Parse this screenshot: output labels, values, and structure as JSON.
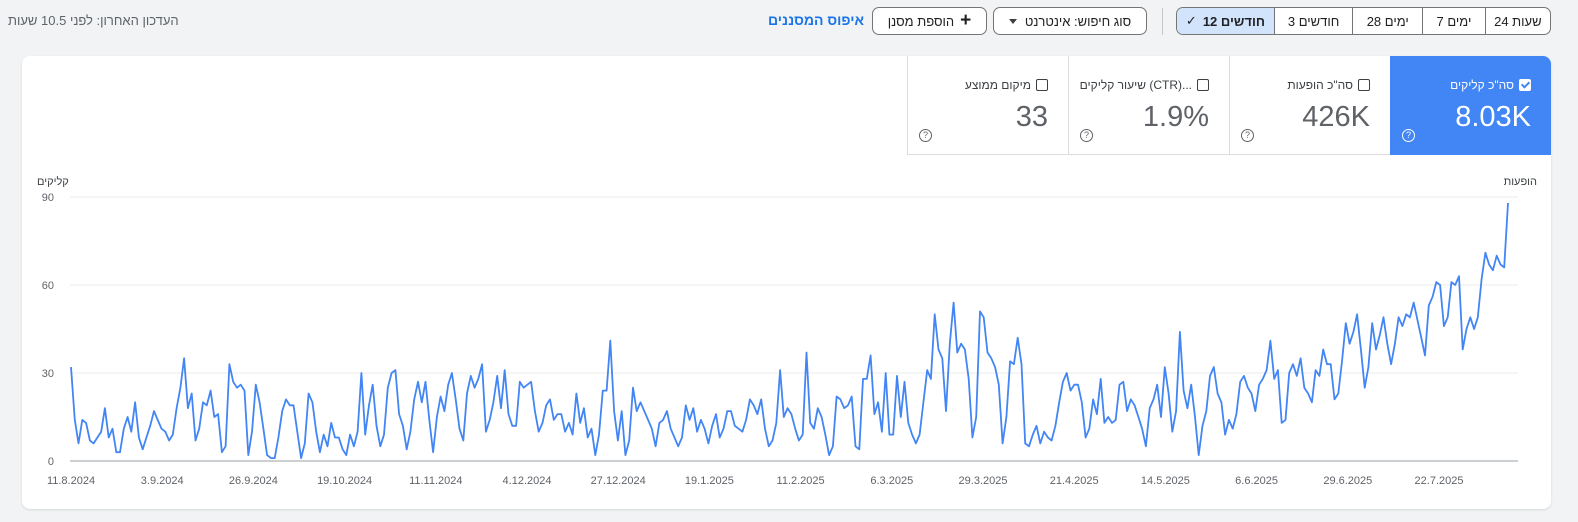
{
  "topbar": {
    "last_updated": "העדכון האחרון: לפני 10.5 שעות",
    "reset_filters": "איפוס המסננים",
    "add_filter": "הוספת מסנן",
    "search_type": "סוג חיפוש: אינטרנט",
    "ranges": [
      {
        "label": "24 שעות",
        "active": false
      },
      {
        "label": "7 ימים",
        "active": false
      },
      {
        "label": "28 ימים",
        "active": false
      },
      {
        "label": "3 חודשים",
        "active": false
      },
      {
        "label": "12 חודשים",
        "active": true
      }
    ]
  },
  "metrics": [
    {
      "label": "סה\"כ קליקים",
      "value": "8.03K",
      "checked": true
    },
    {
      "label": "סה\"כ הופעות",
      "value": "426K",
      "checked": false
    },
    {
      "label": "שיעור קליקים (CTR)...",
      "value": "1.9%",
      "checked": false
    },
    {
      "label": "מיקום ממוצע",
      "value": "33",
      "checked": false
    }
  ],
  "chart": {
    "left_axis_title": "קליקים",
    "right_axis_title": "הופעות",
    "accent_color": "#4285f4"
  },
  "chart_data": {
    "type": "line",
    "title": "",
    "xlabel": "",
    "ylabel": "קליקים",
    "ylim": [
      0,
      90
    ],
    "y_ticks": [
      0,
      30,
      60,
      90
    ],
    "x_tick_labels": [
      "11.8.2024",
      "3.9.2024",
      "26.9.2024",
      "19.10.2024",
      "11.11.2024",
      "4.12.2024",
      "27.12.2024",
      "19.1.2025",
      "11.2.2025",
      "6.3.2025",
      "29.3.2025",
      "21.4.2025",
      "14.5.2025",
      "6.6.2025",
      "29.6.2025",
      "22.7.2025"
    ],
    "grid": true,
    "series": [
      {
        "color": "#4285f4",
        "values": [
          32,
          14,
          6,
          14,
          13,
          7,
          6,
          8,
          10,
          18,
          8,
          11,
          3,
          3,
          11,
          15,
          10,
          20,
          8,
          4,
          8,
          12,
          17,
          14,
          11,
          10,
          7,
          9,
          18,
          25,
          35,
          18,
          23,
          7,
          11,
          20,
          19,
          24,
          15,
          16,
          3,
          5,
          33,
          27,
          25,
          26,
          24,
          2,
          10,
          26,
          20,
          11,
          2,
          1,
          1,
          8,
          17,
          21,
          19,
          19,
          10,
          1,
          6,
          23,
          20,
          10,
          3,
          9,
          5,
          13,
          8,
          8,
          4,
          2,
          9,
          5,
          10,
          30,
          9,
          19,
          26,
          12,
          5,
          9,
          25,
          30,
          31,
          16,
          12,
          4,
          10,
          21,
          27,
          20,
          27,
          14,
          3,
          15,
          22,
          17,
          26,
          30,
          21,
          11,
          7,
          23,
          29,
          25,
          28,
          33,
          10,
          14,
          20,
          29,
          18,
          31,
          16,
          12,
          12,
          27,
          25,
          26,
          27,
          17,
          10,
          13,
          19,
          21,
          14,
          16,
          16,
          10,
          13,
          9,
          23,
          13,
          18,
          8,
          11,
          2,
          9,
          24,
          24,
          41,
          17,
          7,
          17,
          2,
          7,
          25,
          17,
          20,
          17,
          14,
          11,
          5,
          13,
          14,
          17,
          11,
          8,
          5,
          8,
          19,
          14,
          18,
          10,
          14,
          11,
          6,
          12,
          16,
          8,
          11,
          17,
          17,
          12,
          11,
          10,
          14,
          21,
          19,
          16,
          21,
          11,
          5,
          7,
          13,
          31,
          15,
          18,
          16,
          11,
          7,
          9,
          37,
          13,
          11,
          18,
          15,
          9,
          2,
          5,
          22,
          21,
          18,
          19,
          22,
          5,
          4,
          28,
          28,
          36,
          16,
          20,
          10,
          30,
          9,
          9,
          29,
          15,
          27,
          13,
          9,
          6,
          9,
          20,
          31,
          28,
          50,
          38,
          35,
          17,
          40,
          54,
          37,
          40,
          38,
          28,
          8,
          15,
          51,
          49,
          37,
          35,
          32,
          26,
          6,
          15,
          34,
          33,
          42,
          33,
          6,
          5,
          9,
          12,
          6,
          10,
          8,
          7,
          12,
          20,
          27,
          30,
          24,
          26,
          26,
          20,
          8,
          11,
          21,
          16,
          28,
          13,
          15,
          13,
          14,
          26,
          27,
          17,
          21,
          19,
          15,
          11,
          5,
          18,
          21,
          26,
          15,
          32,
          23,
          10,
          17,
          44,
          24,
          18,
          26,
          15,
          2,
          12,
          17,
          29,
          32,
          23,
          20,
          9,
          14,
          11,
          16,
          27,
          29,
          25,
          23,
          17,
          26,
          28,
          31,
          41,
          28,
          31,
          13,
          14,
          30,
          33,
          29,
          35,
          25,
          23,
          20,
          31,
          29,
          38,
          33,
          33,
          21,
          23,
          34,
          47,
          40,
          44,
          50,
          38,
          25,
          32,
          47,
          38,
          43,
          49,
          40,
          33,
          40,
          49,
          46,
          50,
          49,
          54,
          48,
          42,
          36,
          53,
          56,
          61,
          60,
          46,
          49,
          61,
          60,
          63,
          38,
          45,
          49,
          45,
          49,
          62,
          71,
          67,
          65,
          70,
          67,
          66,
          88
        ]
      }
    ]
  }
}
